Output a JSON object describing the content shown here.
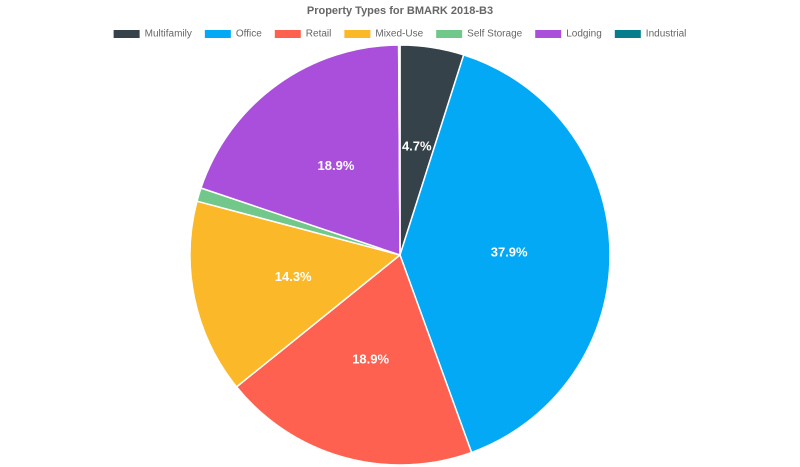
{
  "chart_data": {
    "type": "pie",
    "title": "Property Types for BMARK 2018-B3",
    "legend_position": "top",
    "categories": [
      "Multifamily",
      "Office",
      "Retail",
      "Mixed-Use",
      "Self Storage",
      "Lodging",
      "Industrial"
    ],
    "values": [
      4.7,
      37.9,
      18.9,
      14.3,
      1.0,
      18.9,
      0.1
    ],
    "data_labels": [
      "4.7%",
      "37.9%",
      "18.9%",
      "14.3%",
      "",
      "18.9%",
      ""
    ],
    "colors": [
      "#36424a",
      "#03a9f4",
      "#ff6150",
      "#fbb829",
      "#72c88a",
      "#a94fdc",
      "#057d8a"
    ]
  }
}
